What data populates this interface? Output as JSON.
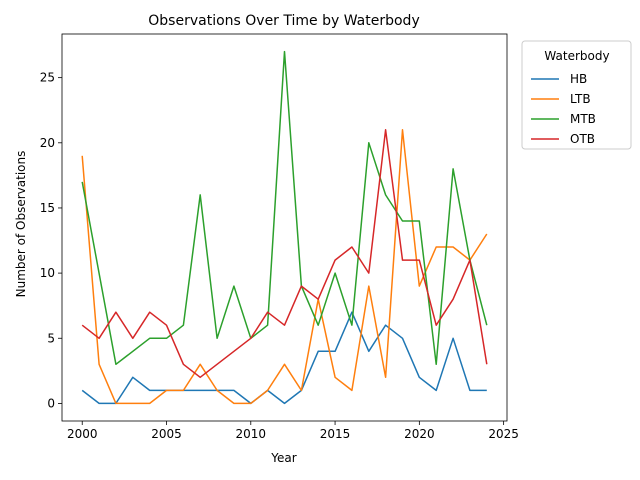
{
  "chart_data": {
    "type": "line",
    "title": "Observations Over Time by Waterbody",
    "xlabel": "Year",
    "ylabel": "Number of Observations",
    "xlim": [
      1998.8,
      2025.2
    ],
    "ylim": [
      -1.35,
      28.35
    ],
    "xticks": [
      2000,
      2005,
      2010,
      2015,
      2020,
      2025
    ],
    "yticks": [
      0,
      5,
      10,
      15,
      20,
      25
    ],
    "grid": false,
    "legend_title": "Waterbody",
    "legend_position": "outside-top-right",
    "x": [
      2000,
      2001,
      2002,
      2003,
      2004,
      2005,
      2006,
      2007,
      2008,
      2009,
      2010,
      2011,
      2012,
      2013,
      2014,
      2015,
      2016,
      2017,
      2018,
      2019,
      2020,
      2021,
      2022,
      2023,
      2024
    ],
    "series": [
      {
        "name": "HB",
        "color": "#1f77b4",
        "values": [
          1,
          0,
          0,
          2,
          1,
          1,
          1,
          1,
          1,
          1,
          0,
          1,
          0,
          1,
          4,
          4,
          7,
          4,
          6,
          5,
          2,
          1,
          5,
          1,
          1
        ]
      },
      {
        "name": "LTB",
        "color": "#ff7f0e",
        "values": [
          19,
          3,
          0,
          0,
          0,
          1,
          1,
          3,
          1,
          0,
          0,
          1,
          3,
          1,
          8,
          2,
          1,
          9,
          2,
          21,
          9,
          12,
          12,
          11,
          13
        ]
      },
      {
        "name": "MTB",
        "color": "#2ca02c",
        "values": [
          17,
          null,
          3,
          null,
          5,
          5,
          6,
          16,
          5,
          9,
          5,
          6,
          27,
          9,
          6,
          10,
          6,
          20,
          16,
          14,
          14,
          3,
          18,
          11,
          6
        ]
      },
      {
        "name": "OTB",
        "color": "#d62728",
        "values": [
          6,
          5,
          7,
          5,
          7,
          6,
          3,
          2,
          null,
          null,
          5,
          7,
          6,
          9,
          8,
          11,
          12,
          10,
          21,
          11,
          11,
          6,
          8,
          11,
          3
        ]
      }
    ]
  }
}
